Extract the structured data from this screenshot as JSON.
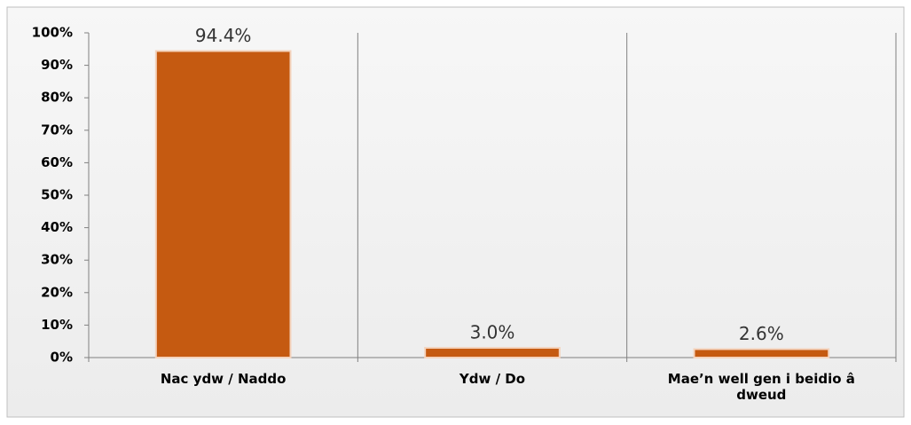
{
  "chart_data": {
    "type": "bar",
    "categories": [
      "Nac ydw / Naddo",
      "Ydw / Do",
      "Mae’n well gen i beidio â dweud"
    ],
    "values": [
      94.4,
      3.0,
      2.6
    ],
    "value_labels": [
      "94.4%",
      "3.0%",
      "2.6%"
    ],
    "color": "#c55a11",
    "ylim": [
      0,
      100
    ],
    "yticks": [
      {
        "value": 0,
        "label": "0%"
      },
      {
        "value": 10,
        "label": "10%"
      },
      {
        "value": 20,
        "label": "20%"
      },
      {
        "value": 30,
        "label": "30%"
      },
      {
        "value": 40,
        "label": "40%"
      },
      {
        "value": 50,
        "label": "50%"
      },
      {
        "value": 60,
        "label": "60%"
      },
      {
        "value": 70,
        "label": "70%"
      },
      {
        "value": 80,
        "label": "80%"
      },
      {
        "value": 90,
        "label": "90%"
      },
      {
        "value": 100,
        "label": "100%"
      }
    ]
  }
}
